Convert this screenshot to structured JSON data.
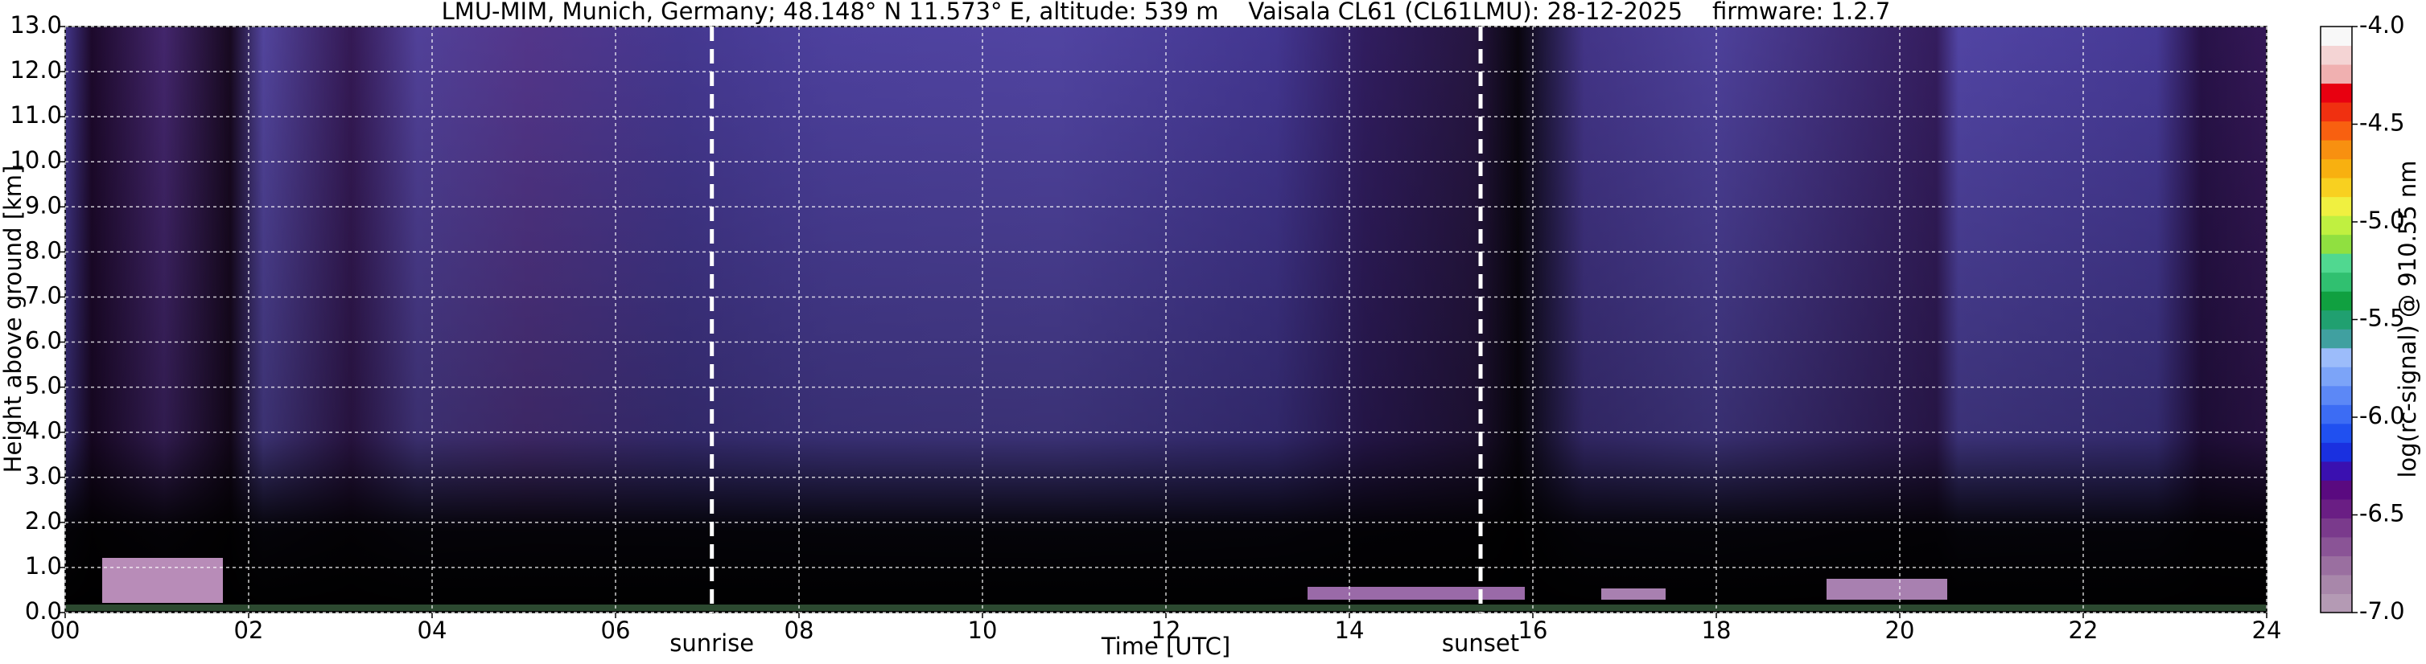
{
  "chart_data": {
    "type": "heatmap",
    "title": "LMU-MIM, Munich, Germany; 48.148° N 11.573° E, altitude: 539 m    Vaisala CL61 (CL61LMU): 28-12-2025    firmware: 1.2.7",
    "xlabel": "Time [UTC]",
    "ylabel": "Height above ground [km]",
    "xlim": [
      0,
      24
    ],
    "xticks": [
      {
        "value": 0,
        "label": "00"
      },
      {
        "value": 2,
        "label": "02"
      },
      {
        "value": 4,
        "label": "04"
      },
      {
        "value": 6,
        "label": "06"
      },
      {
        "value": 8,
        "label": "08"
      },
      10,
      12,
      14,
      16,
      18,
      20,
      22,
      24
    ],
    "ylim": [
      0,
      13
    ],
    "yticks": [
      {
        "value": 0,
        "label": "0.0"
      },
      {
        "value": 1,
        "label": "1.0"
      },
      {
        "value": 2,
        "label": "2.0"
      },
      {
        "value": 3,
        "label": "3.0"
      },
      {
        "value": 4,
        "label": "4.0"
      },
      {
        "value": 5,
        "label": "5.0"
      },
      {
        "value": 6,
        "label": "6.0"
      },
      {
        "value": 7,
        "label": "7.0"
      },
      {
        "value": 8,
        "label": "8.0"
      },
      {
        "value": 9,
        "label": "9.0"
      },
      {
        "value": 10,
        "label": "10.0"
      },
      {
        "value": 11,
        "label": "11.0"
      },
      {
        "value": 12,
        "label": "12.0"
      },
      {
        "value": 13,
        "label": "13.0"
      }
    ],
    "grid": true,
    "annotations": [
      {
        "text": "sunrise",
        "x": 7.05
      },
      {
        "text": "sunset",
        "x": 15.43
      }
    ],
    "colorbar": {
      "label": "log(rc-signal) @ 910.55 nm",
      "lim": [
        -7.0,
        -4.0
      ],
      "ticks": [
        {
          "value": -4.0,
          "label": "-4.0"
        },
        {
          "value": -4.5,
          "label": "-4.5"
        },
        {
          "value": -5.0,
          "label": "-5.0"
        },
        {
          "value": -5.5,
          "label": "-5.5"
        },
        {
          "value": -6.0,
          "label": "-6.0"
        },
        {
          "value": -6.5,
          "label": "-6.5"
        },
        {
          "value": -7.0,
          "label": "-7.0"
        }
      ],
      "colors": [
        "#b49ab4",
        "#a887aa",
        "#9a6fa0",
        "#8a5496",
        "#7a3a8c",
        "#6a1e84",
        "#5a0a80",
        "#3a10b0",
        "#1a30e0",
        "#2050f0",
        "#3c6cf4",
        "#5c88f6",
        "#7ca4f8",
        "#9cbcfa",
        "#40a0a0",
        "#20a070",
        "#10a040",
        "#30c070",
        "#50d890",
        "#90e040",
        "#c0f040",
        "#f0f040",
        "#f8d020",
        "#f8b010",
        "#f89010",
        "#f86010",
        "#f03010",
        "#e80010",
        "#f0b0b0",
        "#f4d4d4",
        "#f8f8f8"
      ]
    }
  }
}
